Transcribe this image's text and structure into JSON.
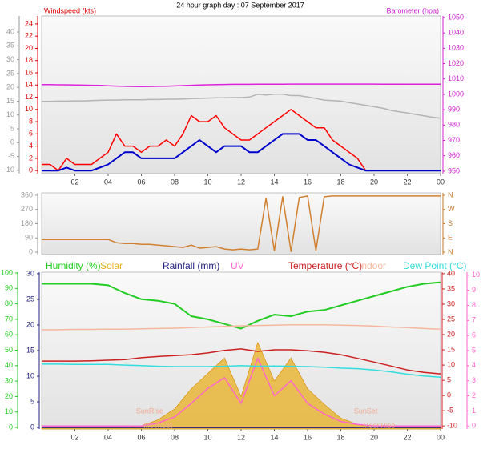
{
  "chart_data": [
    {
      "type": "line",
      "title": "24 hour graph day : 07 September 2017",
      "ylabel": "Windspeed (kts)",
      "y2label": "Barometer (hpa)",
      "x": [
        0,
        0.5,
        1,
        1.5,
        2,
        2.5,
        3,
        3.5,
        4,
        4.5,
        5,
        5.5,
        6,
        6.5,
        7,
        7.5,
        8,
        8.5,
        9,
        9.5,
        10,
        10.5,
        11,
        11.5,
        12,
        12.5,
        13,
        13.5,
        14,
        14.5,
        15,
        15.5,
        16,
        16.5,
        17,
        17.5,
        18,
        18.5,
        19,
        19.5,
        20,
        20.5,
        21,
        21.5,
        22,
        22.5,
        23,
        23.5,
        24
      ],
      "xlim": [
        0,
        24
      ],
      "xticks": [
        {
          "value": 2,
          "label": "02"
        },
        {
          "value": 4,
          "label": "04"
        },
        {
          "value": 6,
          "label": "06"
        },
        {
          "value": 8,
          "label": "08"
        },
        10,
        12,
        14,
        16,
        18,
        20,
        22,
        {
          "value": 24,
          "label": "00"
        }
      ],
      "ylim": [
        -0.5,
        25.3
      ],
      "yticks": [
        0,
        2,
        4,
        6,
        8,
        10,
        12,
        14,
        16,
        18,
        20,
        22,
        24
      ],
      "ycolor": "#dd0000",
      "y2lim": [
        948.4,
        1051
      ],
      "y2ticks": [
        950,
        960,
        970,
        980,
        990,
        1000,
        1010,
        1020,
        1030,
        1040,
        1050
      ],
      "y2color": "#cc22cc",
      "y3lim": [
        -11.2,
        45.8
      ],
      "y3ticks": [
        -10,
        -5,
        0,
        5,
        10,
        15,
        20,
        25,
        30,
        35,
        40
      ],
      "y3color": "#999999",
      "series": [
        {
          "axis": "y3",
          "color": "#b4b4b4",
          "values": [
            14.9,
            14.9,
            15.0,
            15.0,
            15.1,
            15.1,
            15.2,
            15.3,
            15.4,
            15.4,
            15.5,
            15.5,
            15.5,
            15.6,
            15.6,
            15.7,
            15.7,
            15.8,
            15.9,
            16.0,
            16.1,
            16.2,
            16.2,
            16.3,
            16.3,
            16.5,
            17.5,
            17.2,
            17.5,
            17.5,
            17.0,
            17.0,
            16.5,
            16.0,
            15.4,
            15.2,
            15.0,
            14.5,
            14.0,
            13.5,
            13.0,
            12.5,
            11.7,
            11.2,
            10.7,
            10.2,
            9.7,
            9.2,
            8.8
          ]
        },
        {
          "axis": "y2",
          "color": "#dd22dd",
          "values": [
            1006.3,
            1006.3,
            1006.2,
            1006.2,
            1006.1,
            1006.0,
            1005.9,
            1005.8,
            1005.6,
            1005.4,
            1005.2,
            1005.1,
            1005.0,
            1005.1,
            1005.2,
            1005.3,
            1005.5,
            1005.7,
            1005.9,
            1006.1,
            1006.2,
            1006.3,
            1006.4,
            1006.5,
            1006.5,
            1006.5,
            1006.6,
            1006.6,
            1006.6,
            1006.6,
            1006.7,
            1006.7,
            1006.7,
            1006.7,
            1006.7,
            1006.7,
            1006.7,
            1006.7,
            1006.7,
            1006.7,
            1006.7,
            1006.6,
            1006.6,
            1006.6,
            1006.6,
            1006.6,
            1006.6,
            1006.6,
            1006.6
          ]
        },
        {
          "axis": "y",
          "color": "#ff0000",
          "values": [
            1,
            1,
            0,
            2,
            1,
            1,
            1,
            2,
            3,
            6,
            4,
            4,
            3,
            4,
            4,
            5,
            4,
            6,
            9,
            8,
            8,
            9,
            7,
            6,
            5,
            5,
            6,
            7,
            8,
            9,
            10,
            9,
            8,
            7,
            7,
            5,
            4,
            3,
            2,
            0,
            0,
            0,
            0,
            0,
            0,
            0,
            0,
            0,
            0
          ]
        },
        {
          "axis": "y",
          "color": "#0000cc",
          "values": [
            0,
            0,
            0,
            0.5,
            0,
            0,
            0,
            0.5,
            1,
            2,
            3,
            3,
            2,
            2,
            2,
            2,
            2,
            3,
            4,
            5,
            4,
            3,
            4,
            4,
            4,
            3,
            3,
            4,
            5,
            6,
            6,
            6,
            5,
            5,
            4,
            3,
            2,
            1,
            0.5,
            0,
            0,
            0,
            0,
            0,
            0,
            0,
            0,
            0,
            0
          ]
        }
      ]
    },
    {
      "type": "line",
      "x": [
        0,
        0.5,
        1,
        1.5,
        2,
        2.5,
        3,
        3.5,
        4,
        4.5,
        5,
        5.5,
        6,
        6.5,
        7,
        7.5,
        8,
        8.5,
        9,
        9.5,
        10,
        10.5,
        11,
        11.5,
        12,
        12.5,
        13,
        13.5,
        14,
        14.5,
        15,
        15.5,
        16,
        16.5,
        17,
        17.5,
        18,
        18.5,
        19,
        19.5,
        20,
        20.5,
        21,
        21.5,
        22,
        22.5,
        23,
        23.5,
        24
      ],
      "xlim": [
        0,
        24
      ],
      "ylim": [
        -15,
        375
      ],
      "yticks": [
        0,
        90,
        180,
        270,
        360
      ],
      "ycolor": "#999999",
      "y2lim": [
        -15,
        375
      ],
      "y2ticks": [
        {
          "value": 0,
          "label": "N"
        },
        {
          "value": 90,
          "label": "E"
        },
        {
          "value": 180,
          "label": "S"
        },
        {
          "value": 270,
          "label": "W"
        },
        {
          "value": 360,
          "label": "N"
        }
      ],
      "y2color": "#c87a2a",
      "series": [
        {
          "axis": "y",
          "color": "#d08030",
          "values": [
            80,
            80,
            80,
            80,
            80,
            80,
            80,
            80,
            80,
            60,
            55,
            55,
            50,
            50,
            45,
            40,
            35,
            30,
            45,
            25,
            30,
            35,
            20,
            15,
            20,
            15,
            20,
            340,
            10,
            350,
            5,
            345,
            355,
            10,
            350,
            355,
            355,
            355,
            355,
            355,
            355,
            355,
            355,
            355,
            355,
            355,
            355,
            355,
            355
          ]
        }
      ]
    },
    {
      "type": "line",
      "x": [
        0,
        1,
        2,
        3,
        4,
        5,
        6,
        7,
        8,
        9,
        10,
        11,
        12,
        13,
        14,
        15,
        16,
        17,
        18,
        19,
        20,
        21,
        22,
        23,
        24
      ],
      "xlim": [
        0,
        24
      ],
      "xticks": [
        {
          "value": 2,
          "label": "02"
        },
        {
          "value": 4,
          "label": "04"
        },
        {
          "value": 6,
          "label": "06"
        },
        {
          "value": 8,
          "label": "08"
        },
        10,
        12,
        14,
        16,
        18,
        20,
        22,
        {
          "value": 24,
          "label": "00"
        }
      ],
      "ylim": [
        -1,
        100.5
      ],
      "yticks": [
        0,
        10,
        20,
        30,
        40,
        50,
        60,
        70,
        80,
        90,
        100
      ],
      "ycolor": "#22cc22",
      "y3lim": [
        -0.3,
        30.3
      ],
      "y3ticks": [
        0,
        5,
        10,
        15,
        20,
        25,
        30
      ],
      "y3color": "#202080",
      "y2lim": [
        -11,
        40.5
      ],
      "y2ticks": [
        -10,
        -5,
        0,
        5,
        10,
        15,
        20,
        25,
        30,
        35,
        40
      ],
      "y2color": "#cc2020",
      "y4lim": [
        -0.2,
        10.2
      ],
      "y4ticks": [
        0,
        1,
        2,
        3,
        4,
        5,
        6,
        7,
        8,
        9,
        10
      ],
      "y4color": "#ff66cc",
      "series": [
        {
          "name": "Humidity (%)",
          "axis": "y",
          "color": "#22cc22",
          "values": [
            93,
            93,
            93,
            93,
            92,
            87,
            83,
            82,
            80,
            72,
            70,
            67,
            64,
            69,
            73,
            72,
            75,
            76,
            79,
            82,
            85,
            88,
            91,
            93,
            94
          ]
        },
        {
          "name": "Solar",
          "axis": "y",
          "kind": "area",
          "color": "#e8b020",
          "values": [
            0,
            0,
            0,
            0,
            0,
            0,
            1,
            5,
            12,
            25,
            35,
            45,
            20,
            55,
            30,
            45,
            25,
            15,
            6,
            2,
            0,
            0,
            0,
            0,
            0
          ]
        },
        {
          "name": "Rainfall (mm)",
          "axis": "y3",
          "color": "#202080",
          "values": [
            0,
            0,
            0,
            0,
            0,
            0,
            0,
            0,
            0,
            0,
            0,
            0,
            0,
            0,
            0,
            0,
            0,
            0,
            0,
            0,
            0,
            0,
            0,
            0,
            0
          ]
        },
        {
          "name": "UV",
          "axis": "y4",
          "color": "#ff66cc",
          "values": [
            0,
            0,
            0,
            0,
            0,
            0,
            0,
            0.2,
            0.6,
            1.5,
            2.5,
            3.2,
            1.5,
            4.5,
            2.0,
            3.0,
            1.5,
            0.8,
            0.3,
            0.1,
            0,
            0,
            0,
            0,
            0
          ]
        },
        {
          "name": "Temperature (°C)",
          "axis": "y2",
          "color": "#cc2020",
          "values": [
            11.3,
            11.3,
            11.3,
            11.4,
            11.6,
            11.8,
            12.4,
            12.8,
            13.1,
            13.4,
            14.0,
            14.8,
            15.3,
            14.5,
            15.0,
            15.0,
            14.7,
            14.2,
            13.4,
            12.2,
            11.0,
            9.7,
            8.4,
            7.6,
            7.1
          ]
        },
        {
          "name": "Indoor",
          "axis": "y2",
          "color": "#f4b8a0",
          "values": [
            21.6,
            21.6,
            21.7,
            21.7,
            21.8,
            21.8,
            21.9,
            22.0,
            22.1,
            22.3,
            22.5,
            22.7,
            22.9,
            23.0,
            23.1,
            23.2,
            23.2,
            23.2,
            23.1,
            23.0,
            22.8,
            22.5,
            22.3,
            22.0,
            21.8
          ]
        },
        {
          "name": "Dew Point (°C)",
          "axis": "y2",
          "color": "#33dddd",
          "values": [
            10.3,
            10.3,
            10.2,
            10.2,
            10.2,
            10.0,
            9.8,
            9.6,
            9.5,
            9.5,
            9.5,
            9.6,
            9.8,
            9.6,
            9.7,
            9.6,
            9.5,
            9.3,
            9.0,
            8.8,
            8.4,
            7.8,
            7.0,
            6.4,
            6.0
          ]
        }
      ],
      "annotations": [
        {
          "text": "SunRise",
          "x": 6.5
        },
        {
          "text": "MoonSet",
          "x": 7.0
        },
        {
          "text": "SunSet",
          "x": 19.5
        },
        {
          "text": "MoonRise",
          "x": 20.3
        }
      ]
    }
  ]
}
